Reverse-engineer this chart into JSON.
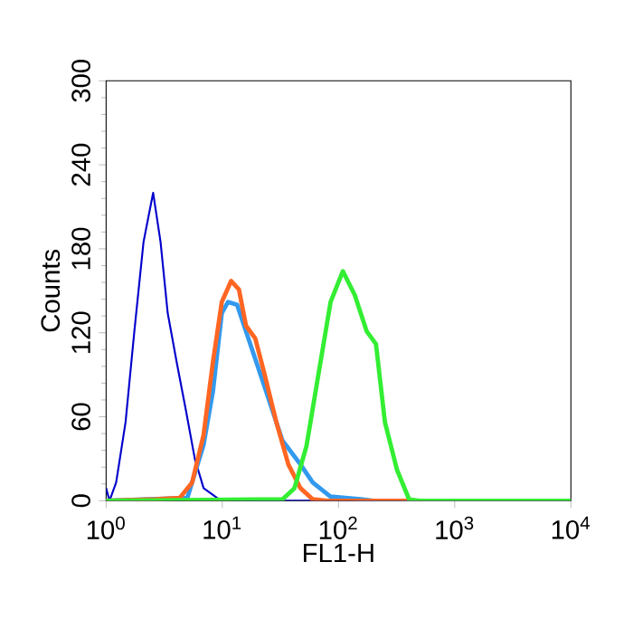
{
  "chart_data": {
    "type": "line",
    "xlabel": "FL1-H",
    "ylabel": "Counts",
    "log": "x",
    "xlim": [
      1,
      10000
    ],
    "ylim": [
      0,
      300
    ],
    "xticks": [
      {
        "value": 1,
        "label": "10$^{0}$"
      },
      {
        "value": 10,
        "label": "10$^{1}$"
      },
      {
        "value": 100,
        "label": "10$^{2}$"
      },
      {
        "value": 1000,
        "label": "10$^{3}$"
      },
      {
        "value": 10000,
        "label": "10$^{4}$"
      }
    ],
    "yticks": [
      0,
      60,
      120,
      180,
      240,
      300
    ],
    "grid": false,
    "marker": "none",
    "line_style": "solid",
    "series": [
      {
        "color": "#0000cc",
        "x": [
          1,
          1.07,
          1.22,
          1.47,
          1.75,
          2.1,
          2.54,
          2.94,
          3.39,
          4.05,
          4.85,
          5.8,
          6.9,
          9.4,
          20,
          10000
        ],
        "values": [
          9,
          0,
          13,
          56,
          121,
          185,
          220,
          185,
          134,
          99,
          65,
          30,
          9,
          1,
          0,
          0
        ]
      },
      {
        "color": "#3399ee",
        "x": [
          1,
          5,
          6.9,
          8.3,
          9.9,
          11.2,
          13.4,
          16,
          23,
          32.9,
          47,
          60,
          85,
          155,
          200,
          10000
        ],
        "values": [
          0,
          2,
          40,
          78,
          134,
          142,
          140,
          121,
          82,
          43,
          26,
          13,
          3,
          1,
          0,
          0
        ]
      },
      {
        "color": "#ff6622",
        "x": [
          1,
          2.66,
          4.3,
          5.5,
          6.9,
          8.3,
          9.9,
          11.9,
          13.9,
          16,
          19.2,
          23,
          29.2,
          37,
          47,
          60,
          80,
          10000
        ],
        "values": [
          0,
          1,
          2,
          13,
          47,
          99,
          142,
          157,
          151,
          125,
          116,
          91,
          56,
          26,
          9,
          1,
          0,
          0
        ]
      },
      {
        "color": "#33ee33",
        "x": [
          1,
          33,
          41.8,
          53,
          67.4,
          85.5,
          109,
          138,
          175,
          210,
          251,
          319,
          405,
          500,
          10000
        ],
        "values": [
          0,
          1,
          9,
          39,
          91,
          142,
          164,
          147,
          121,
          112,
          56,
          22,
          1,
          0,
          0
        ]
      }
    ]
  }
}
